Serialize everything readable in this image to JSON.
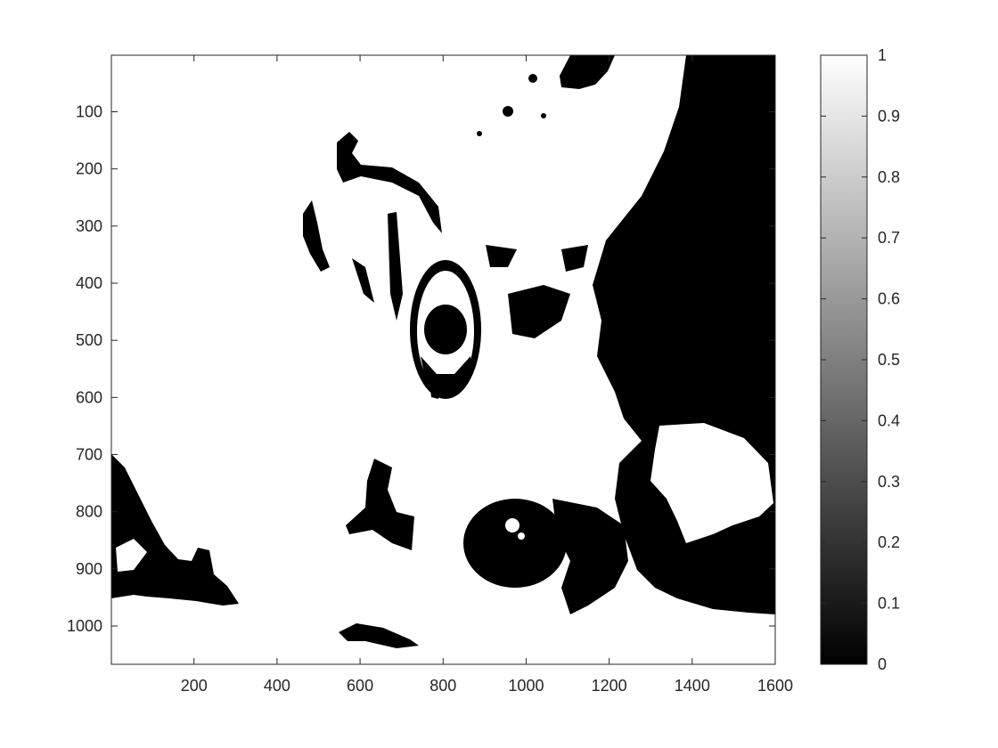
{
  "chart_data": {
    "type": "heatmap",
    "title": "",
    "xlabel": "",
    "ylabel": "",
    "colormap": "gray",
    "xlim": [
      1,
      1600
    ],
    "ylim": [
      1,
      1067
    ],
    "y_direction": "reverse",
    "grid": false,
    "x_ticks": [
      200,
      400,
      600,
      800,
      1000,
      1200,
      1400,
      1600
    ],
    "y_ticks": [
      100,
      200,
      300,
      400,
      500,
      600,
      700,
      800,
      900,
      1000
    ],
    "colorbar": {
      "range": [
        0,
        1
      ],
      "ticks": [
        0,
        0.1,
        0.2,
        0.3,
        0.4,
        0.5,
        0.6,
        0.7,
        0.8,
        0.9,
        1
      ],
      "tick_labels": [
        "0",
        "0.1",
        "0.2",
        "0.3",
        "0.4",
        "0.5",
        "0.6",
        "0.7",
        "0.8",
        "0.9",
        "1"
      ]
    },
    "image_values": [
      0,
      1
    ],
    "image_content": "binary threshold photo of a cat face"
  },
  "colors": {
    "axis": "#262626",
    "low": "#000000",
    "high": "#ffffff"
  }
}
